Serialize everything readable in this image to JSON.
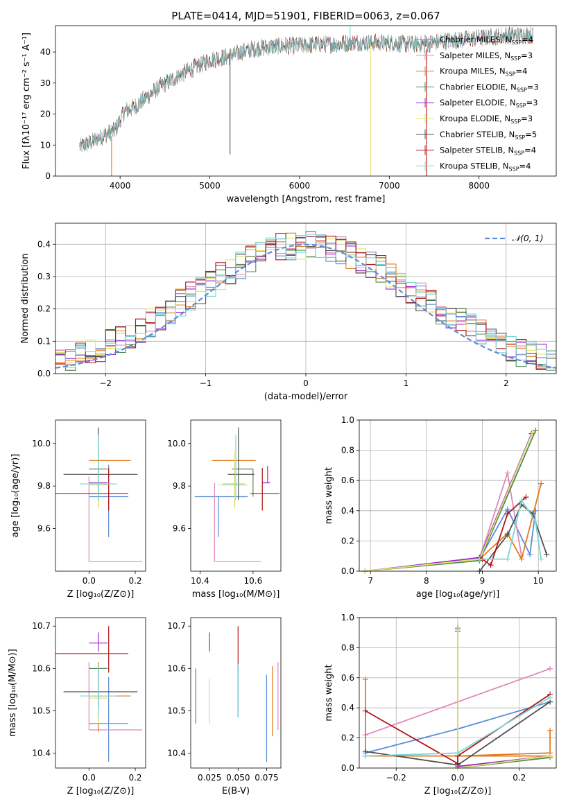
{
  "figure_title": "PLATE=0414, MJD=51901, FIBERID=0063, z=0.067",
  "colors": {
    "Chabrier MILES": "#5b8bd9",
    "Salpeter MILES": "#e088b8",
    "Kroupa MILES": "#e07b1e",
    "Chabrier ELODIE": "#4f8a55",
    "Salpeter ELODIE": "#9a25c8",
    "Kroupa ELODIE": "#e4e36a",
    "Chabrier STELIB": "#505050",
    "Salpeter STELIB": "#b21515",
    "Kroupa STELIB": "#78d8d8",
    "gaussian": "#5b8bd9"
  },
  "chart_data": [
    {
      "id": "spectrum",
      "type": "line",
      "title": "PLATE=0414, MJD=51901, FIBERID=0063, z=0.067",
      "xlabel": "wavelength [Angstrom, rest frame]",
      "ylabel": "Flux [fλ10⁻¹⁷ erg cm⁻² s⁻¹ A⁻¹]",
      "xlim": [
        3280,
        8860
      ],
      "ylim": [
        0,
        48.5
      ],
      "xticks": [
        4000,
        5000,
        6000,
        7000,
        8000
      ],
      "yticks": [
        0,
        10,
        20,
        30,
        40
      ],
      "grid": false,
      "legend_position": "right",
      "continuum": {
        "x": [
          3550,
          3650,
          3750,
          3850,
          3950,
          4050,
          4150,
          4300,
          4450,
          4600,
          4800,
          5000,
          5200,
          5400,
          5600,
          5800,
          6000,
          6200,
          6400,
          6600,
          6800,
          7000,
          7200,
          7400,
          7600,
          7800,
          8000,
          8200,
          8400,
          8600
        ],
        "y": [
          9.5,
          10.5,
          12,
          13.5,
          15,
          21,
          22,
          25.5,
          29,
          31.5,
          34.5,
          37.5,
          38.5,
          40.5,
          41.5,
          42,
          42,
          42.5,
          42.5,
          43,
          43,
          43,
          42.5,
          42.5,
          43.5,
          44,
          44.5,
          45,
          45.5,
          45.5
        ]
      },
      "series": [
        {
          "name": "Chabrier MILES, N_SSP=4"
        },
        {
          "name": "Salpeter MILES, N_SSP=3"
        },
        {
          "name": "Kroupa MILES, N_SSP=4"
        },
        {
          "name": "Chabrier ELODIE, N_SSP=3"
        },
        {
          "name": "Salpeter ELODIE, N_SSP=3"
        },
        {
          "name": "Kroupa ELODIE, N_SSP=3"
        },
        {
          "name": "Chabrier STELIB, N_SSP=5"
        },
        {
          "name": "Salpeter STELIB, N_SSP=4"
        },
        {
          "name": "Kroupa STELIB, N_SSP=4"
        }
      ]
    },
    {
      "id": "residuals",
      "type": "histogram",
      "xlabel": "(data-model)/error",
      "ylabel": "Normed distribution",
      "xlim": [
        -2.5,
        2.5
      ],
      "ylim": [
        0,
        0.465
      ],
      "xticks": [
        -2,
        -1,
        0,
        1,
        2
      ],
      "yticks": [
        0.0,
        0.1,
        0.2,
        0.3,
        0.4
      ],
      "grid": true,
      "bin_width": 0.1,
      "bin_start": -2.5,
      "legend": "𝒩(0, 1)",
      "legend_position": "top-right"
    },
    {
      "id": "age_vs_Z",
      "type": "errorbar",
      "xlabel": "Z [log₁₀(Z/Z⊙)]",
      "ylabel": "age  [log₁₀(age/yr)]",
      "xlim": [
        -0.145,
        0.245
      ],
      "ylim": [
        9.4,
        10.11
      ],
      "xticks": [
        0.0,
        0.2
      ],
      "yticks": [
        9.6,
        9.8,
        10.0
      ],
      "points": [
        {
          "model": "Chabrier MILES",
          "x": 0.085,
          "xerr": [
            0.085,
            0.085
          ],
          "y": 9.75,
          "yerr": [
            0.19,
            0.15
          ]
        },
        {
          "model": "Salpeter MILES",
          "x": 0.0,
          "xerr": [
            0.0,
            0.23
          ],
          "y": 9.445,
          "yerr": [
            0.0,
            0.4
          ]
        },
        {
          "model": "Kroupa MILES",
          "x": 0.04,
          "xerr": [
            0.04,
            0.14
          ],
          "y": 9.92,
          "yerr": [
            0.22,
            0.0
          ]
        },
        {
          "model": "Chabrier ELODIE",
          "x": 0.04,
          "xerr": [
            0.04,
            0.04
          ],
          "y": 9.88,
          "yerr": [
            0.13,
            0.0
          ]
        },
        {
          "model": "Salpeter ELODIE",
          "x": 0.04,
          "xerr": [
            0.04,
            0.04
          ],
          "y": 9.815,
          "yerr": [
            0.01,
            0.01
          ]
        },
        {
          "model": "Kroupa ELODIE",
          "x": 0.04,
          "xerr": [
            0.04,
            0.04
          ],
          "y": 9.805,
          "yerr": [
            0.11,
            0.16
          ]
        },
        {
          "model": "Chabrier STELIB",
          "x": 0.04,
          "xerr": [
            0.15,
            0.17
          ],
          "y": 9.855,
          "yerr": [
            0.12,
            0.22
          ]
        },
        {
          "model": "Salpeter STELIB",
          "x": 0.085,
          "xerr": [
            0.23,
            0.085
          ],
          "y": 9.765,
          "yerr": [
            0.08,
            0.12
          ]
        },
        {
          "model": "Kroupa STELIB",
          "x": 0.04,
          "xerr": [
            0.08,
            0.08
          ],
          "y": 9.81,
          "yerr": [
            0.08,
            0.23
          ]
        }
      ]
    },
    {
      "id": "age_vs_mass",
      "type": "errorbar",
      "xlabel": "mass [log₁₀(M/M⊙)]",
      "ylabel": "",
      "xlim": [
        10.365,
        10.705
      ],
      "ylim": [
        9.4,
        10.11
      ],
      "xticks": [
        10.4,
        10.6
      ],
      "yticks": [
        9.6,
        9.8,
        10.0
      ],
      "points": [
        {
          "model": "Chabrier MILES",
          "x": 10.47,
          "xerr": [
            0.09,
            0.11
          ],
          "y": 9.75,
          "yerr": [
            0.19,
            0.0
          ]
        },
        {
          "model": "Salpeter MILES",
          "x": 10.455,
          "xerr": [
            0.0,
            0.175
          ],
          "y": 9.445,
          "yerr": [
            0.0,
            0.37
          ]
        },
        {
          "model": "Kroupa MILES",
          "x": 10.53,
          "xerr": [
            0.085,
            0.08
          ],
          "y": 9.92,
          "yerr": [
            0.22,
            0.0
          ]
        },
        {
          "model": "Chabrier ELODIE",
          "x": 10.6,
          "xerr": [
            0.08,
            0.0
          ],
          "y": 9.88,
          "yerr": [
            0.13,
            0.0
          ]
        },
        {
          "model": "Salpeter ELODIE",
          "x": 10.655,
          "xerr": [
            0.02,
            0.01
          ],
          "y": 9.815,
          "yerr": [
            0.0,
            0.08
          ]
        },
        {
          "model": "Kroupa ELODIE",
          "x": 10.53,
          "xerr": [
            0.06,
            0.05
          ],
          "y": 9.805,
          "yerr": [
            0.11,
            0.16
          ]
        },
        {
          "model": "Chabrier STELIB",
          "x": 10.545,
          "xerr": [
            0.04,
            0.06
          ],
          "y": 9.855,
          "yerr": [
            0.12,
            0.22
          ]
        },
        {
          "model": "Salpeter STELIB",
          "x": 10.635,
          "xerr": [
            0.045,
            0.065
          ],
          "y": 9.765,
          "yerr": [
            0.08,
            0.12
          ]
        },
        {
          "model": "Kroupa STELIB",
          "x": 10.535,
          "xerr": [
            0.05,
            0.035
          ],
          "y": 9.81,
          "yerr": [
            0.08,
            0.23
          ]
        }
      ]
    },
    {
      "id": "weight_vs_age",
      "type": "line",
      "xlabel": "age  [log₁₀(age/yr)]",
      "ylabel": "mass weight",
      "xlim": [
        6.8,
        10.32
      ],
      "ylim": [
        0,
        1.0
      ],
      "xticks": [
        7,
        8,
        9,
        10
      ],
      "yticks": [
        0.0,
        0.2,
        0.4,
        0.6,
        0.8,
        1.0
      ],
      "grid": true,
      "series": [
        {
          "model": "Chabrier MILES",
          "x": [
            8.95,
            9.45,
            9.85,
            9.95
          ],
          "y": [
            0.08,
            0.41,
            0.11,
            0.4
          ]
        },
        {
          "model": "Salpeter MILES",
          "x": [
            8.95,
            9.45,
            9.7
          ],
          "y": [
            0.08,
            0.65,
            0.1
          ]
        },
        {
          "model": "Kroupa MILES",
          "x": [
            8.95,
            9.45,
            9.7,
            10.05
          ],
          "y": [
            0.08,
            0.25,
            0.08,
            0.58
          ]
        },
        {
          "model": "Chabrier ELODIE",
          "x": [
            6.9,
            8.95,
            9.95
          ],
          "y": [
            0.0,
            0.07,
            0.93
          ]
        },
        {
          "model": "Salpeter ELODIE",
          "x": [
            6.9,
            8.95,
            9.88
          ],
          "y": [
            0.0,
            0.09,
            0.91
          ]
        },
        {
          "model": "Kroupa ELODIE",
          "x": [
            6.9,
            8.95,
            9.9
          ],
          "y": [
            0.0,
            0.08,
            0.92
          ]
        },
        {
          "model": "Chabrier STELIB",
          "x": [
            8.95,
            9.45,
            9.7,
            9.9,
            10.15
          ],
          "y": [
            0.0,
            0.24,
            0.44,
            0.38,
            0.11
          ]
        },
        {
          "model": "Salpeter STELIB",
          "x": [
            8.95,
            9.0,
            9.15,
            9.45,
            9.78
          ],
          "y": [
            0.09,
            0.08,
            0.04,
            0.38,
            0.49
          ]
        },
        {
          "model": "Kroupa STELIB",
          "x": [
            8.95,
            9.45,
            9.7,
            9.95,
            10.05
          ],
          "y": [
            0.08,
            0.08,
            0.47,
            0.33,
            0.08
          ]
        }
      ]
    },
    {
      "id": "mass_vs_Z",
      "type": "errorbar",
      "xlabel": "Z [log₁₀(Z/Z⊙)]",
      "ylabel": "mass [log₁₀(M/M⊙)]",
      "xlim": [
        -0.145,
        0.245
      ],
      "ylim": [
        10.365,
        10.72
      ],
      "xticks": [
        0.0,
        0.2
      ],
      "yticks": [
        10.4,
        10.5,
        10.6,
        10.7
      ],
      "points": [
        {
          "model": "Chabrier MILES",
          "x": 0.085,
          "xerr": [
            0.085,
            0.085
          ],
          "y": 10.47,
          "yerr": [
            0.09,
            0.11
          ]
        },
        {
          "model": "Salpeter MILES",
          "x": 0.0,
          "xerr": [
            0.0,
            0.23
          ],
          "y": 10.455,
          "yerr": [
            0.0,
            0.16
          ]
        },
        {
          "model": "Kroupa MILES",
          "x": 0.04,
          "xerr": [
            0.04,
            0.14
          ],
          "y": 10.535,
          "yerr": [
            0.085,
            0.08
          ]
        },
        {
          "model": "Chabrier ELODIE",
          "x": 0.04,
          "xerr": [
            0.04,
            0.04
          ],
          "y": 10.6,
          "yerr": [
            0.08,
            0.0
          ]
        },
        {
          "model": "Salpeter ELODIE",
          "x": 0.04,
          "xerr": [
            0.04,
            0.04
          ],
          "y": 10.66,
          "yerr": [
            0.02,
            0.025
          ]
        },
        {
          "model": "Kroupa ELODIE",
          "x": 0.04,
          "xerr": [
            0.04,
            0.04
          ],
          "y": 10.53,
          "yerr": [
            0.06,
            0.05
          ]
        },
        {
          "model": "Chabrier STELIB",
          "x": 0.04,
          "xerr": [
            0.15,
            0.17
          ],
          "y": 10.545,
          "yerr": [
            0.04,
            0.06
          ]
        },
        {
          "model": "Salpeter STELIB",
          "x": 0.085,
          "xerr": [
            0.23,
            0.085
          ],
          "y": 10.635,
          "yerr": [
            0.045,
            0.065
          ]
        },
        {
          "model": "Kroupa STELIB",
          "x": 0.04,
          "xerr": [
            0.08,
            0.08
          ],
          "y": 10.535,
          "yerr": [
            0.05,
            0.07
          ]
        }
      ]
    },
    {
      "id": "mass_vs_ebv",
      "type": "errorbar",
      "xlabel": "E(B-V)",
      "ylabel": "",
      "xlim": [
        0.0085,
        0.0875
      ],
      "ylim": [
        10.365,
        10.72
      ],
      "xticks": [
        0.025,
        0.05,
        0.075
      ],
      "yticks": [
        10.4,
        10.5,
        10.6,
        10.7
      ],
      "points": [
        {
          "model": "Chabrier MILES",
          "x": 0.075,
          "y": 10.47,
          "yerr": [
            0.09,
            0.115
          ]
        },
        {
          "model": "Salpeter MILES",
          "x": 0.085,
          "y": 10.535,
          "yerr": [
            0.08,
            0.08
          ]
        },
        {
          "model": "Kroupa MILES",
          "x": 0.08,
          "y": 10.535,
          "yerr": [
            0.095,
            0.07
          ]
        },
        {
          "model": "Chabrier ELODIE",
          "x": 0.013,
          "y": 10.56,
          "yerr": [
            0.09,
            0.04
          ]
        },
        {
          "model": "Salpeter ELODIE",
          "x": 0.025,
          "y": 10.66,
          "yerr": [
            0.02,
            0.025
          ]
        },
        {
          "model": "Kroupa ELODIE",
          "x": 0.025,
          "y": 10.5,
          "yerr": [
            0.03,
            0.075
          ]
        },
        {
          "model": "Chabrier STELIB",
          "x": 0.05,
          "y": 10.545,
          "yerr": [
            0.06,
            0.06
          ]
        },
        {
          "model": "Salpeter STELIB",
          "x": 0.05,
          "y": 10.64,
          "yerr": [
            0.05,
            0.06
          ]
        },
        {
          "model": "Kroupa STELIB",
          "x": 0.05,
          "y": 10.55,
          "yerr": [
            0.065,
            0.06
          ]
        }
      ]
    },
    {
      "id": "weight_vs_Z",
      "type": "line",
      "xlabel": "Z [log₁₀(Z/Z⊙)]",
      "ylabel": "mass weight",
      "xlim": [
        -0.32,
        0.32
      ],
      "ylim": [
        0,
        1.0
      ],
      "xticks": [
        -0.2,
        0.0,
        0.2
      ],
      "yticks": [
        0.0,
        0.2,
        0.4,
        0.6,
        0.8,
        1.0
      ],
      "grid": true,
      "series": [
        {
          "model": "Chabrier MILES",
          "x": [
            -0.3,
            0.0,
            0.3
          ],
          "y": [
            0.1,
            0.26,
            0.44
          ]
        },
        {
          "model": "Salpeter MILES",
          "x": [
            -0.3,
            0.3
          ],
          "y": [
            0.22,
            0.66
          ]
        },
        {
          "model": "Kroupa MILES",
          "x": [
            -0.3,
            -0.3,
            0.3,
            0.3,
            0.3,
            0.0,
            -0.3
          ],
          "y": [
            0.59,
            0.08,
            0.08,
            0.25,
            0.1,
            0.08,
            0.08
          ]
        },
        {
          "model": "Chabrier ELODIE",
          "x": [
            0.0,
            0.0,
            0.3
          ],
          "y": [
            0.93,
            0.0,
            0.07
          ]
        },
        {
          "model": "Salpeter ELODIE",
          "x": [
            0.0,
            0.0,
            0.3
          ],
          "y": [
            0.91,
            0.01,
            0.08
          ]
        },
        {
          "model": "Kroupa ELODIE",
          "x": [
            0.0,
            0.0,
            0.3
          ],
          "y": [
            0.92,
            0.0,
            0.08
          ]
        },
        {
          "model": "Chabrier STELIB",
          "x": [
            -0.3,
            0.0,
            0.3
          ],
          "y": [
            0.11,
            0.02,
            0.44
          ]
        },
        {
          "model": "Salpeter STELIB",
          "x": [
            -0.3,
            0.0,
            0.0,
            0.3
          ],
          "y": [
            0.38,
            0.03,
            0.08,
            0.49
          ]
        },
        {
          "model": "Kroupa STELIB",
          "x": [
            -0.3,
            0.0,
            0.3
          ],
          "y": [
            0.08,
            0.1,
            0.47
          ]
        }
      ]
    }
  ]
}
